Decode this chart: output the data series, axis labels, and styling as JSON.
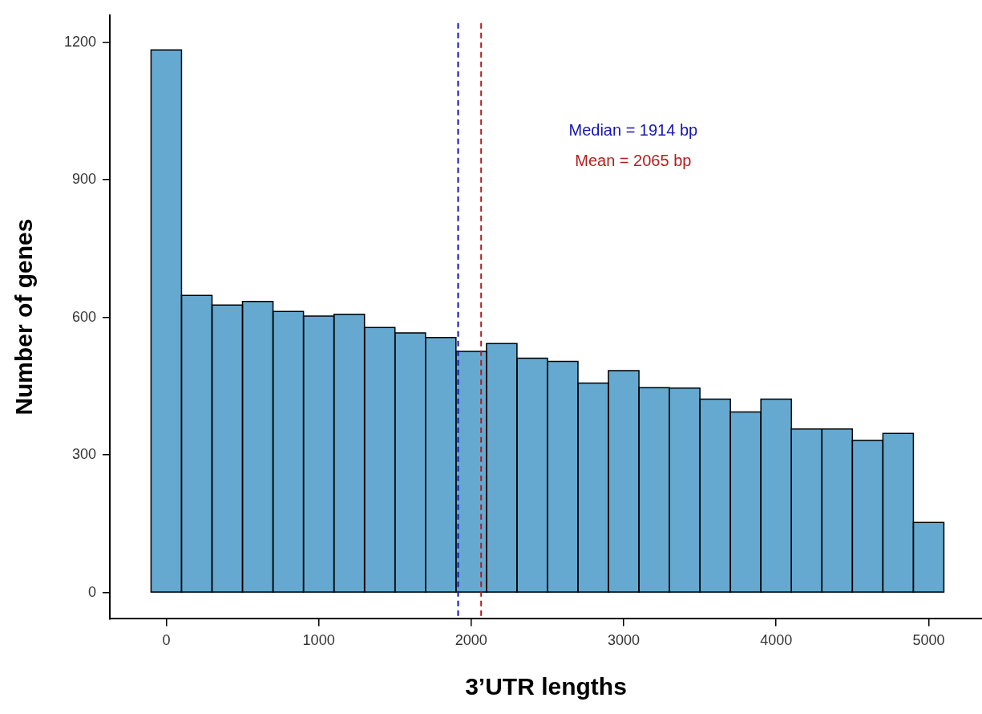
{
  "chart_data": {
    "type": "histogram",
    "xlabel": "3’UTR lengths",
    "ylabel": "Number of genes",
    "bins": [
      -100,
      100,
      300,
      500,
      700,
      900,
      1100,
      1300,
      1500,
      1700,
      1900,
      2100,
      2300,
      2500,
      2700,
      2900,
      3100,
      3300,
      3500,
      3700,
      3900,
      4100,
      4300,
      4500,
      4700,
      4900,
      5100
    ],
    "values": [
      1183,
      648,
      627,
      635,
      613,
      603,
      607,
      578,
      566,
      556,
      526,
      543,
      511,
      504,
      457,
      484,
      447,
      446,
      422,
      394,
      422,
      357,
      357,
      332,
      347,
      153
    ],
    "color": "#65a9d0",
    "xlim": [
      -370,
      5350
    ],
    "xticks": [
      0,
      1000,
      2000,
      3000,
      4000,
      5000
    ],
    "ylim": [
      -57,
      1259
    ],
    "yticks": [
      0,
      300,
      600,
      900,
      1200
    ],
    "grid": false,
    "legend": false,
    "ref_lines": [
      {
        "axis": "x",
        "value": 1914,
        "label": "Median = 1914 bp",
        "color": "#1414b4",
        "line_style": "dashed"
      },
      {
        "axis": "x",
        "value": 2065,
        "label": "Mean = 2065 bp",
        "color": "#b41e1e",
        "line_style": "dashed"
      }
    ]
  }
}
